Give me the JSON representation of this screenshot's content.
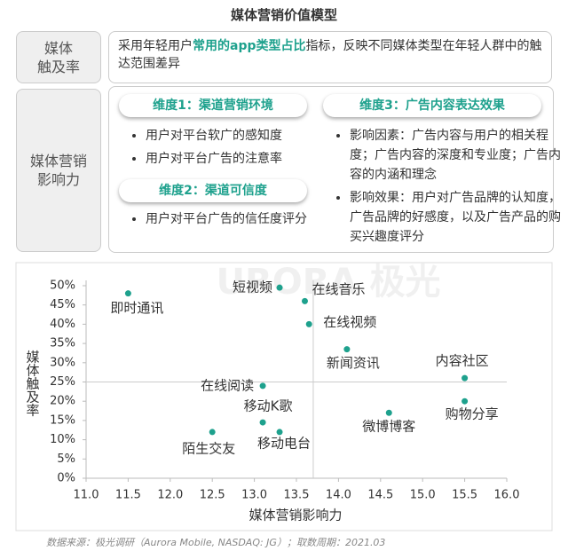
{
  "header": {
    "title": "媒体营销价值模型",
    "reach": {
      "label": [
        "媒体",
        "触及率"
      ],
      "text": [
        "采用年轻用户",
        "常用的app类型占比",
        "指标，反映不同媒体类型在年轻人群中的触达范围差异"
      ]
    },
    "influence": {
      "label": [
        "媒体营销",
        "影响力"
      ],
      "dimensions": [
        {
          "title": "维度1：渠道营销环境",
          "items": [
            "用户对平台软广的感知度",
            "用户对平台广告的注意率"
          ]
        },
        {
          "title": "维度2：渠道可信度",
          "items": [
            "用户对平台广告的信任度评分"
          ]
        },
        {
          "title": "维度3：广告内容表达效果",
          "items": [
            "影响因素：广告内容与用户的相关程度；广告内容的深度和专业度；广告内容的内涵和理念",
            "影响效果：用户对广告品牌的认知度，广告品牌的好感度，以及广告产品的购买兴趣度评分"
          ]
        }
      ]
    }
  },
  "chart_data": {
    "type": "scatter",
    "watermark": "URORA 极光",
    "x_label": "媒体营销影响力",
    "y_label": "媒体触及率",
    "categories": [
      "即时通讯",
      "短视频",
      "在线音乐",
      "在线视频",
      "新闻资讯",
      "内容社区",
      "在线阅读",
      "购物分享",
      "微博博客",
      "移动K歌",
      "陌生交友",
      "移动电台"
    ],
    "x": [
      11.5,
      13.3,
      13.6,
      13.65,
      14.1,
      15.5,
      13.1,
      15.5,
      14.6,
      13.1,
      12.5,
      13.3
    ],
    "values": [
      48,
      49.5,
      46,
      40,
      33.5,
      26,
      24,
      20,
      17,
      14.5,
      12,
      12
    ],
    "color": "#1ea18d",
    "ref_x": 13.7,
    "ref_y": 25,
    "xlim": [
      11.0,
      16.0
    ],
    "xticks": [
      {
        "value": 11,
        "label": "11.0"
      },
      {
        "value": 11.5,
        "label": "11.5"
      },
      {
        "value": 12,
        "label": "12.0"
      },
      {
        "value": 12.5,
        "label": "12.5"
      },
      {
        "value": 13,
        "label": "13.0"
      },
      {
        "value": 13.5,
        "label": "13.5"
      },
      {
        "value": 14,
        "label": "14.0"
      },
      {
        "value": 14.5,
        "label": "14.5"
      },
      {
        "value": 15,
        "label": "15.0"
      },
      {
        "value": 15.5,
        "label": "15.5"
      },
      {
        "value": 16,
        "label": "16.0"
      }
    ],
    "ylim": [
      0,
      50
    ],
    "yticks": [
      {
        "value": 0,
        "label": "0%"
      },
      {
        "value": 5,
        "label": "5%"
      },
      {
        "value": 10,
        "label": "10%"
      },
      {
        "value": 15,
        "label": "15%"
      },
      {
        "value": 20,
        "label": "20%"
      },
      {
        "value": 25,
        "label": "25%"
      },
      {
        "value": 30,
        "label": "30%"
      },
      {
        "value": 35,
        "label": "35%"
      },
      {
        "value": 40,
        "label": "40%"
      },
      {
        "value": 45,
        "label": "45%"
      },
      {
        "value": 50,
        "label": "50%"
      }
    ]
  },
  "source": "数据来源：极光调研（Aurora Mobile, NASDAQ: JG）；取数周期：2021.03"
}
